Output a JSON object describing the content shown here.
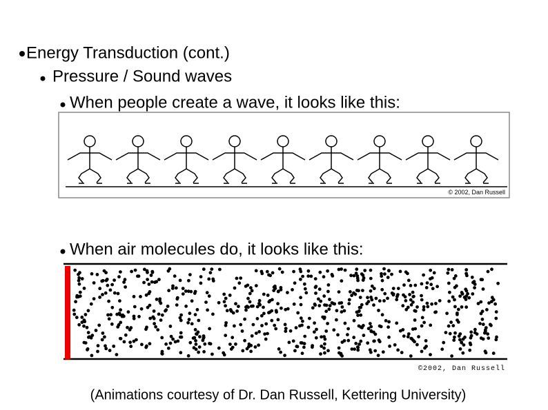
{
  "bullets": [
    {
      "level": 1,
      "text": "Energy Transduction (cont.)"
    },
    {
      "level": 2,
      "text": "Pressure / Sound waves"
    },
    {
      "level": 3,
      "text": "When people create a wave, it looks like this:"
    },
    {
      "level": 3,
      "text": "When air molecules do, it looks like this:"
    }
  ],
  "figures": {
    "people_credit": "© 2002, Dan Russell",
    "molecules_credit": "©2002, Dan Russell"
  },
  "caption": "(Animations courtesy of Dr. Dan Russell, Kettering University)"
}
